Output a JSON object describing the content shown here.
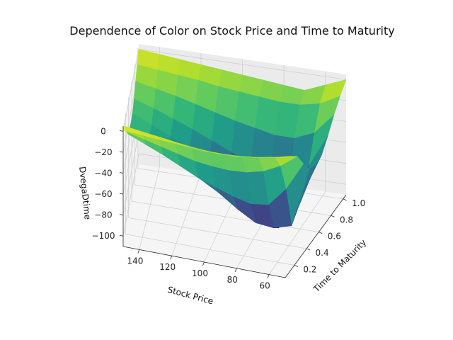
{
  "chart_data": {
    "type": "surface3d",
    "title": "Dependence of Color on Stock Price and Time to Maturity",
    "xlabel": "Stock Price",
    "ylabel": "Time to Maturity",
    "zlabel": "DvegaDtime",
    "xlim": [
      50,
      150
    ],
    "ylim": [
      0.05,
      1.05
    ],
    "zlim": [
      -110,
      5
    ],
    "xticks": [
      "60",
      "80",
      "100",
      "120",
      "140"
    ],
    "yticks": [
      "0.2",
      "0.4",
      "0.6",
      "0.8",
      "1.0"
    ],
    "zticks": [
      "0",
      "−20",
      "−40",
      "−60",
      "−80",
      "−100"
    ],
    "xtick_values": [
      60,
      80,
      100,
      120,
      140
    ],
    "ytick_values": [
      0.2,
      0.4,
      0.6,
      0.8,
      1.0
    ],
    "ztick_values": [
      0,
      -20,
      -40,
      -60,
      -80,
      -100
    ],
    "colormap": "viridis",
    "grid": true,
    "surface": {
      "x": [
        50,
        60,
        70,
        80,
        90,
        100,
        110,
        120,
        130,
        140,
        150
      ],
      "y": [
        0.05,
        0.15,
        0.25,
        0.35,
        0.45,
        0.55,
        0.65,
        0.75,
        0.85,
        0.95,
        1.05
      ],
      "z": [
        [
          5,
          2,
          -1,
          -3,
          -4,
          -4,
          -3,
          -2,
          -1,
          0,
          1
        ],
        [
          -2,
          -6,
          -9,
          -11,
          -12,
          -12,
          -11,
          -9,
          -7,
          -5,
          -3
        ],
        [
          -10,
          -22,
          -30,
          -34,
          -35,
          -34,
          -32,
          -28,
          -24,
          -20,
          -16
        ],
        [
          -25,
          -52,
          -70,
          -72,
          -68,
          -62,
          -56,
          -48,
          -40,
          -33,
          -26
        ],
        [
          -38,
          -95,
          -100,
          -98,
          -88,
          -76,
          -66,
          -56,
          -46,
          -38,
          -30
        ],
        [
          -42,
          -88,
          -108,
          -100,
          -90,
          -78,
          -68,
          -58,
          -48,
          -39,
          -31
        ],
        [
          -40,
          -80,
          -96,
          -92,
          -84,
          -74,
          -64,
          -55,
          -46,
          -38,
          -30
        ],
        [
          -30,
          -62,
          -76,
          -74,
          -68,
          -60,
          -52,
          -44,
          -37,
          -30,
          -24
        ],
        [
          -18,
          -38,
          -46,
          -46,
          -42,
          -38,
          -33,
          -28,
          -23,
          -19,
          -15
        ],
        [
          -8,
          -18,
          -22,
          -22,
          -20,
          -18,
          -16,
          -13,
          -11,
          -9,
          -7
        ],
        [
          0,
          -8,
          -16,
          -14,
          -12,
          -10,
          -8,
          -6,
          -4,
          -2,
          0
        ]
      ]
    }
  }
}
